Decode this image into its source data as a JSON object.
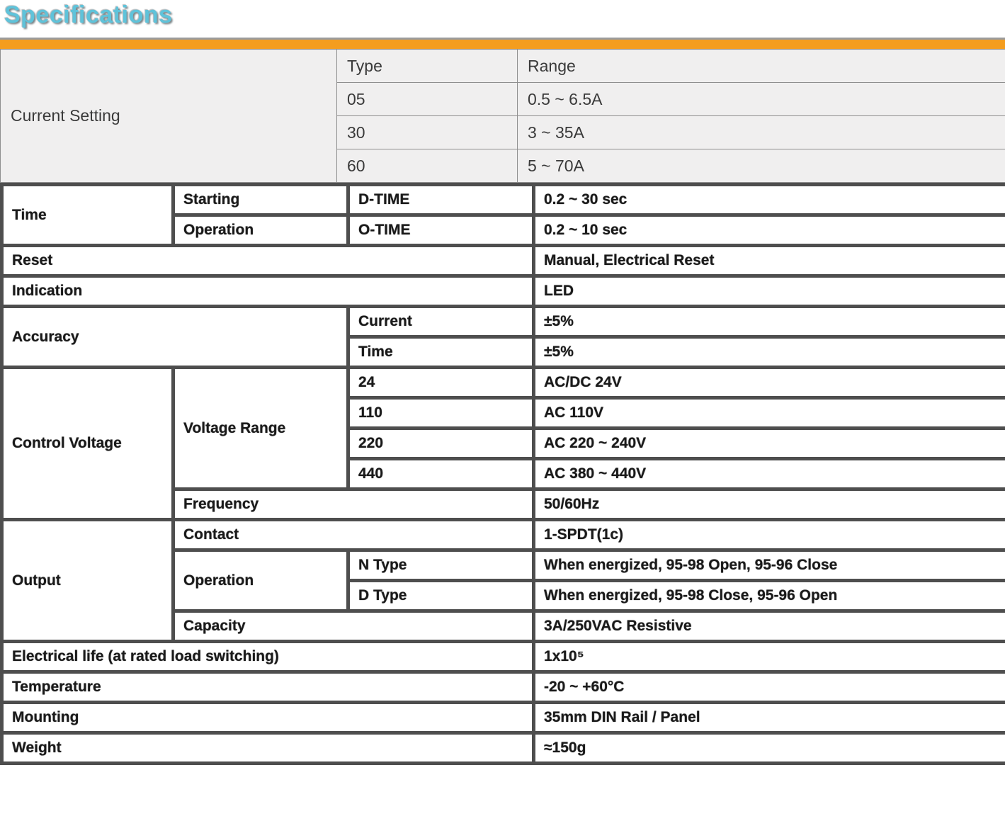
{
  "title": "Specifications",
  "colors": {
    "title_text": "#5fc3da",
    "accent_bar": "#f49d1e",
    "grid_dark": "#4e4e4e",
    "top_table_bg": "#f0efef"
  },
  "top_table": {
    "row_label": "Current Setting",
    "headers": [
      "Type",
      "Range"
    ],
    "rows": [
      [
        "05",
        "0.5 ~ 6.5A"
      ],
      [
        "30",
        "3 ~ 35A"
      ],
      [
        "60",
        "5 ~ 70A"
      ]
    ]
  },
  "spec": {
    "time": {
      "label": "Time",
      "starting": {
        "label": "Starting",
        "code": "D-TIME",
        "value": "0.2 ~ 30 sec"
      },
      "operation": {
        "label": "Operation",
        "code": "O-TIME",
        "value": "0.2 ~ 10 sec"
      }
    },
    "reset": {
      "label": "Reset",
      "value": "Manual, Electrical Reset"
    },
    "indication": {
      "label": "Indication",
      "value": "LED"
    },
    "accuracy": {
      "label": "Accuracy",
      "current": {
        "label": "Current",
        "value": "±5%"
      },
      "time": {
        "label": "Time",
        "value": "±5%"
      }
    },
    "control_voltage": {
      "label": "Control Voltage",
      "voltage_range": {
        "label": "Voltage Range",
        "rows": [
          {
            "code": "24",
            "value": "AC/DC 24V"
          },
          {
            "code": "110",
            "value": "AC 110V"
          },
          {
            "code": "220",
            "value": "AC 220 ~ 240V"
          },
          {
            "code": "440",
            "value": "AC 380 ~ 440V"
          }
        ]
      },
      "frequency": {
        "label": "Frequency",
        "value": "50/60Hz"
      }
    },
    "output": {
      "label": "Output",
      "contact": {
        "label": "Contact",
        "value": "1-SPDT(1c)"
      },
      "operation": {
        "label": "Operation",
        "n_type": {
          "label": "N Type",
          "value": "When energized, 95-98 Open, 95-96 Close"
        },
        "d_type": {
          "label": "D Type",
          "value": "When energized, 95-98 Close, 95-96 Open"
        }
      },
      "capacity": {
        "label": "Capacity",
        "value": "3A/250VAC Resistive"
      }
    },
    "electrical_life": {
      "label": "Electrical life (at rated load switching)",
      "value": "1x10⁵"
    },
    "temperature": {
      "label": "Temperature",
      "value": "-20 ~ +60°C"
    },
    "mounting": {
      "label": "Mounting",
      "value": "35mm DIN Rail / Panel"
    },
    "weight": {
      "label": "Weight",
      "value": "≈150g"
    }
  }
}
